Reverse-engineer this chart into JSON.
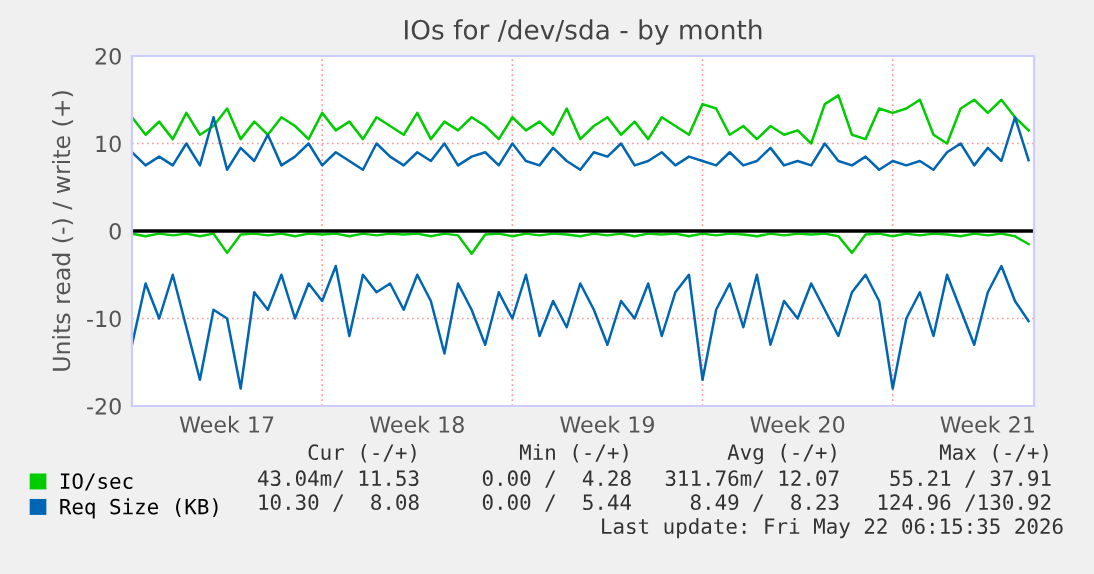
{
  "chart_data": {
    "type": "line",
    "title": "IOs for /dev/sda - by month",
    "ylabel": "Units read (-) / write (+)",
    "categories": [
      null,
      null,
      null,
      null,
      null,
      null,
      null,
      "Week 17",
      null,
      null,
      null,
      null,
      null,
      null,
      null,
      null,
      null,
      null,
      null,
      null,
      null,
      "Week 18",
      null,
      null,
      null,
      null,
      null,
      null,
      null,
      null,
      null,
      null,
      null,
      null,
      null,
      "Week 19",
      null,
      null,
      null,
      null,
      null,
      null,
      null,
      null,
      null,
      null,
      null,
      null,
      null,
      "Week 20",
      null,
      null,
      null,
      null,
      null,
      null,
      null,
      null,
      null,
      null,
      null,
      null,
      null,
      "Week 21",
      null,
      null,
      null
    ],
    "series": [
      {
        "name": "IO/sec",
        "color": "#00cc00",
        "values": [
          13,
          11,
          12.5,
          10.5,
          13.5,
          11,
          12,
          14,
          10.5,
          12.5,
          11,
          13,
          12,
          10.5,
          13.5,
          11.5,
          12.5,
          10.5,
          13,
          12,
          11,
          13.5,
          10.5,
          12.5,
          11.5,
          13,
          12,
          10.5,
          13,
          11.5,
          12.5,
          11,
          14,
          10.5,
          12,
          13,
          11,
          12.5,
          10.5,
          13,
          12,
          11,
          14.5,
          14,
          11,
          12,
          10.5,
          12,
          11,
          11.5,
          10,
          14.5,
          15.5,
          11,
          10.5,
          14,
          13.5,
          14,
          15,
          11,
          10,
          14,
          15,
          13.5,
          15,
          13,
          11.5
        ]
      },
      {
        "color": "#00cc00",
        "values": [
          -0.3,
          -0.6,
          -0.3,
          -0.5,
          -0.3,
          -0.6,
          -0.3,
          -2.5,
          -0.4,
          -0.3,
          -0.5,
          -0.3,
          -0.6,
          -0.3,
          -0.4,
          -0.3,
          -0.6,
          -0.3,
          -0.5,
          -0.3,
          -0.4,
          -0.3,
          -0.6,
          -0.3,
          -0.5,
          -2.6,
          -0.4,
          -0.3,
          -0.6,
          -0.3,
          -0.5,
          -0.3,
          -0.4,
          -0.6,
          -0.3,
          -0.5,
          -0.3,
          -0.6,
          -0.3,
          -0.4,
          -0.3,
          -0.6,
          -0.3,
          -0.5,
          -0.3,
          -0.4,
          -0.6,
          -0.3,
          -0.5,
          -0.3,
          -0.4,
          -0.3,
          -0.6,
          -2.5,
          -0.4,
          -0.3,
          -0.6,
          -0.3,
          -0.5,
          -0.3,
          -0.4,
          -0.6,
          -0.3,
          -0.5,
          -0.3,
          -0.6,
          -1.5
        ]
      },
      {
        "name": "Req Size (KB)",
        "color": "#0066b3",
        "values": [
          9,
          7.5,
          8.5,
          7.5,
          10,
          7.5,
          13,
          7,
          9.5,
          8,
          11,
          7.5,
          8.5,
          10,
          7.5,
          9,
          8,
          7,
          10,
          8.5,
          7.5,
          9,
          8,
          10,
          7.5,
          8.5,
          9,
          7.5,
          10,
          8,
          7.5,
          9.5,
          8,
          7,
          9,
          8.5,
          10,
          7.5,
          8,
          9,
          7.5,
          8.5,
          8,
          7.5,
          9,
          7.5,
          8,
          9.5,
          7.5,
          8,
          7.5,
          10,
          8,
          7.5,
          8.5,
          7,
          8,
          7.5,
          8,
          7,
          9,
          10,
          7.5,
          9.5,
          8,
          13,
          8.1
        ]
      },
      {
        "color": "#0066b3",
        "values": [
          -13,
          -6,
          -10,
          -5,
          -11,
          -17,
          -9,
          -10,
          -18,
          -7,
          -9,
          -5,
          -10,
          -6,
          -8,
          -4,
          -12,
          -5,
          -7,
          -6,
          -9,
          -5,
          -8,
          -14,
          -6,
          -9,
          -13,
          -7,
          -10,
          -5,
          -12,
          -8,
          -11,
          -6,
          -9,
          -13,
          -8,
          -10,
          -6,
          -12,
          -7,
          -5,
          -17,
          -9,
          -6,
          -11,
          -5,
          -13,
          -8,
          -10,
          -6,
          -9,
          -12,
          -7,
          -5,
          -8,
          -18,
          -10,
          -7,
          -12,
          -5,
          -9,
          -13,
          -7,
          -4,
          -8,
          -10.3
        ]
      }
    ],
    "ylim": [
      -20,
      20
    ],
    "yticks": [
      -20,
      -10,
      0,
      10,
      20
    ],
    "ref_lines": [
      {
        "axis": "y",
        "value": 0,
        "color": "#000000"
      }
    ],
    "grid": true,
    "legend": "bottom left",
    "marker": "none",
    "line_style": "solid",
    "annotations": [
      "Cur (-/+)",
      "Min (-/+)",
      "Avg (-/+)",
      "Max (-/+)",
      "43.04m/ 11.53",
      "0.00 /  4.28",
      "311.76m/ 12.07",
      "55.21 / 37.91",
      "10.30 /  8.08",
      "0.00 /  5.44",
      "8.49 /  8.23",
      "124.96 /130.92",
      "Last update: Fri May 22 06:15:35 2026"
    ]
  }
}
